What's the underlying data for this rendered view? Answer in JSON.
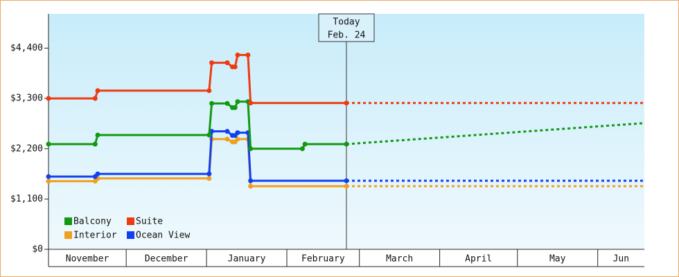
{
  "chart_data": {
    "type": "line",
    "xlim": [
      0,
      230
    ],
    "xticks": [
      {
        "value": 0,
        "label": "November"
      },
      {
        "value": 30,
        "label": "December"
      },
      {
        "value": 61,
        "label": "January"
      },
      {
        "value": 92,
        "label": "February"
      },
      {
        "value": 120,
        "label": "March"
      },
      {
        "value": 151,
        "label": "April"
      },
      {
        "value": 181,
        "label": "May"
      },
      {
        "value": 212,
        "label": "Jun"
      }
    ],
    "ylim": [
      0,
      5150
    ],
    "yticks": [
      {
        "value": 0,
        "label": "$0"
      },
      {
        "value": 1100,
        "label": "$1,100"
      },
      {
        "value": 2200,
        "label": "$2,200"
      },
      {
        "value": 3300,
        "label": "$3,300"
      },
      {
        "value": 4400,
        "label": "$4,400"
      }
    ],
    "today": {
      "x": 115,
      "label": [
        "Today",
        "Feb. 24"
      ]
    },
    "series": [
      {
        "name": "Balcony",
        "color": "#119911",
        "x": [
          0,
          18,
          19,
          62,
          63,
          69,
          71,
          72,
          73,
          77,
          78,
          98,
          99,
          115
        ],
        "values": [
          2300,
          2300,
          2500,
          2500,
          3190,
          3190,
          3100,
          3100,
          3230,
          3230,
          2200,
          2200,
          2300,
          2300
        ],
        "projection": {
          "x": 230,
          "value": 2760
        }
      },
      {
        "name": "Suite",
        "color": "#ee3a10",
        "x": [
          0,
          18,
          19,
          62,
          63,
          69,
          71,
          72,
          73,
          77,
          78,
          115
        ],
        "values": [
          3300,
          3300,
          3470,
          3470,
          4080,
          4080,
          3990,
          3990,
          4250,
          4250,
          3200,
          3200
        ],
        "projection": {
          "x": 230,
          "value": 3200
        }
      },
      {
        "name": "Interior",
        "color": "#f0a020",
        "x": [
          0,
          18,
          19,
          62,
          63,
          69,
          71,
          72,
          73,
          77,
          78,
          115
        ],
        "values": [
          1490,
          1490,
          1550,
          1550,
          2410,
          2410,
          2350,
          2350,
          2410,
          2410,
          1380,
          1380
        ],
        "projection": {
          "x": 230,
          "value": 1380
        }
      },
      {
        "name": "Ocean View",
        "color": "#1040f0",
        "x": [
          0,
          18,
          19,
          62,
          63,
          69,
          71,
          72,
          73,
          77,
          78,
          115
        ],
        "values": [
          1590,
          1590,
          1650,
          1650,
          2580,
          2580,
          2490,
          2490,
          2550,
          2550,
          1500,
          1500
        ],
        "projection": {
          "x": 230,
          "value": 1500
        }
      }
    ]
  }
}
